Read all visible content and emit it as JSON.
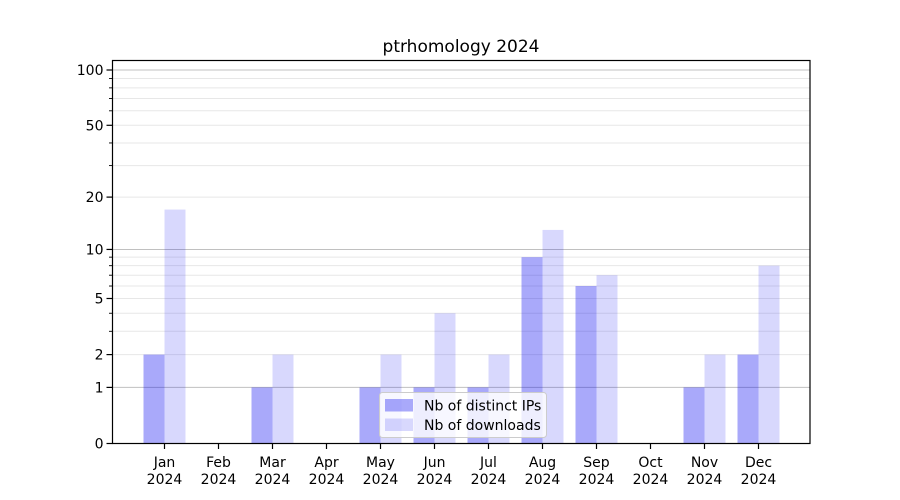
{
  "chart_data": {
    "type": "bar",
    "title": "ptrhomology 2024",
    "categories": [
      "Jan",
      "Feb",
      "Mar",
      "Apr",
      "May",
      "Jun",
      "Jul",
      "Aug",
      "Sep",
      "Oct",
      "Nov",
      "Dec"
    ],
    "x_sublabel": "2024",
    "series": [
      {
        "name": "Nb of distinct IPs",
        "values": [
          2,
          0,
          1,
          0,
          1,
          1,
          1,
          9,
          6,
          0,
          1,
          2
        ]
      },
      {
        "name": "Nb of downloads",
        "values": [
          17,
          0,
          2,
          0,
          2,
          4,
          2,
          13,
          7,
          0,
          2,
          8
        ]
      }
    ],
    "yscale": "log(1+v)",
    "ylim": [
      0,
      100
    ],
    "yticks": [
      0,
      1,
      2,
      5,
      10,
      20,
      50,
      100
    ],
    "ytick_major": [
      1,
      10,
      100
    ],
    "ytick_minor_grid": [
      3,
      4,
      6,
      7,
      8,
      9,
      30,
      40,
      60,
      70,
      80,
      90
    ],
    "grid": true,
    "legend_position": "lower center",
    "colors": {
      "bar_base": "#0a0af0",
      "ips_bar_effective": "#aaaaf8",
      "downloads_bar_effective": "#d8d8f8",
      "ips_bar_rgba": "rgba(10,10,240,0.35)",
      "downloads_bar_rgba": "rgba(10,10,240,0.16)",
      "grid_major": "#c0c0c0",
      "grid_minor": "#e7e7e7",
      "axis": "#000000",
      "legend_border": "#cccccc"
    }
  }
}
